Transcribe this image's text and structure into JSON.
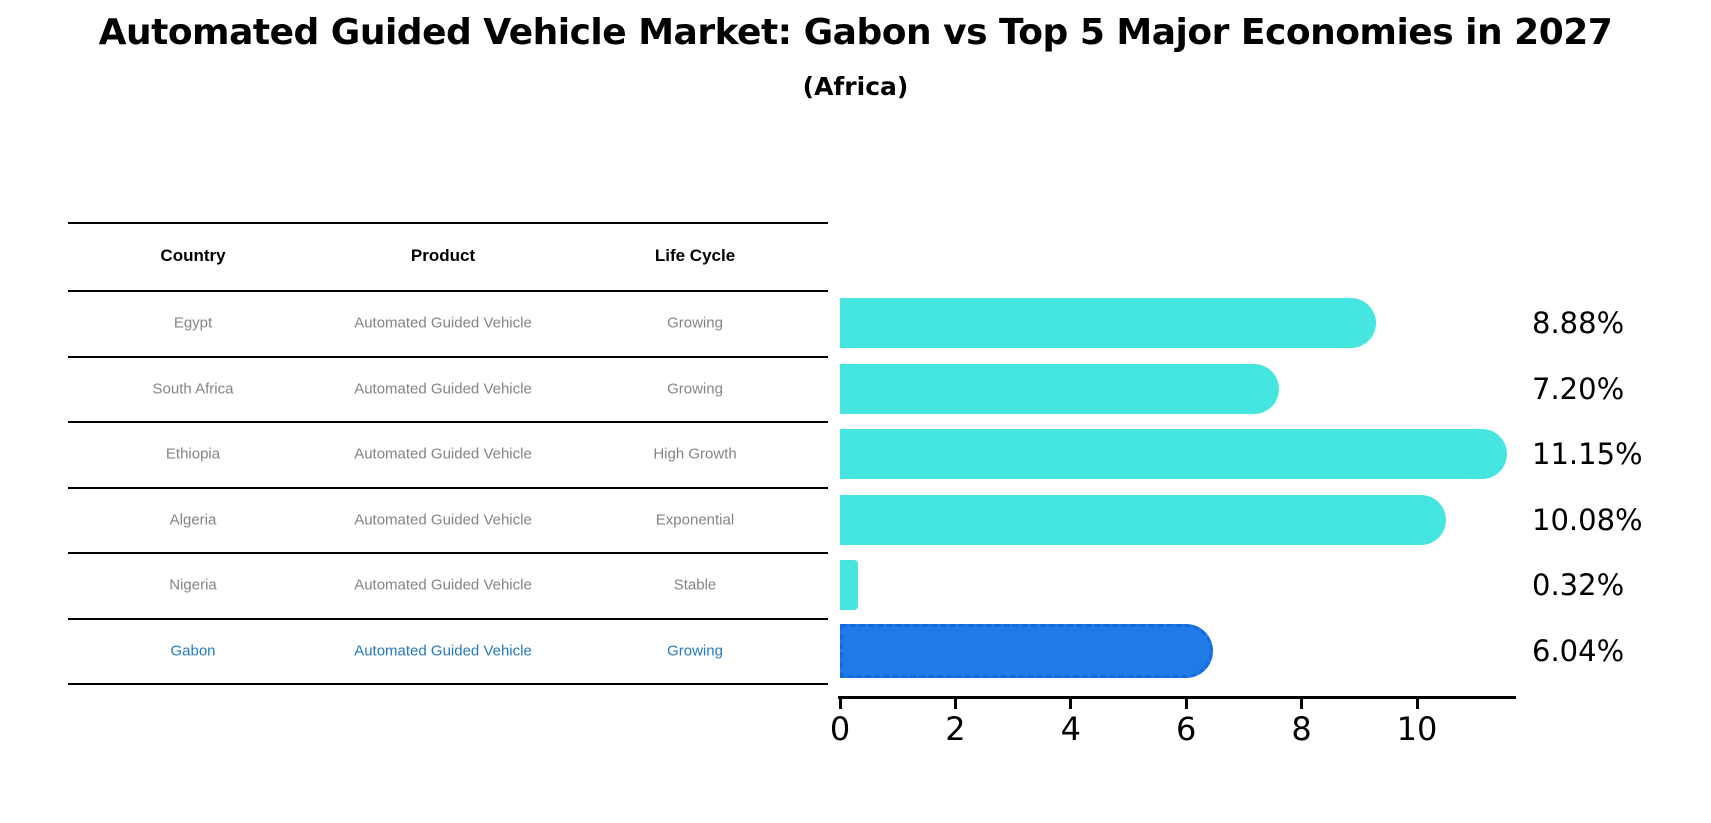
{
  "header": {
    "title": "Automated Guided Vehicle Market: Gabon vs Top 5 Major Economies in 2027",
    "subtitle": "(Africa)"
  },
  "table": {
    "columns": [
      "Country",
      "Product",
      "Life Cycle"
    ],
    "rows": [
      {
        "country": "Egypt",
        "product": "Automated Guided Vehicle",
        "life_cycle": "Growing",
        "highlight": false
      },
      {
        "country": "South Africa",
        "product": "Automated Guided Vehicle",
        "life_cycle": "Growing",
        "highlight": false
      },
      {
        "country": "Ethiopia",
        "product": "Automated Guided Vehicle",
        "life_cycle": "High Growth",
        "highlight": false
      },
      {
        "country": "Algeria",
        "product": "Automated Guided Vehicle",
        "life_cycle": "Exponential",
        "highlight": false
      },
      {
        "country": "Nigeria",
        "product": "Automated Guided Vehicle",
        "life_cycle": "Stable",
        "highlight": false
      },
      {
        "country": "Gabon",
        "product": "Automated Guided Vehicle",
        "life_cycle": "Growing",
        "highlight": true
      }
    ]
  },
  "chart_data": {
    "type": "bar",
    "orientation": "horizontal",
    "title": "Automated Guided Vehicle Market: Gabon vs Top 5 Major Economies in 2027",
    "subtitle": "(Africa)",
    "categories": [
      "Egypt",
      "South Africa",
      "Ethiopia",
      "Algeria",
      "Nigeria",
      "Gabon"
    ],
    "values": [
      8.88,
      7.2,
      11.15,
      10.08,
      0.32,
      6.04
    ],
    "value_labels": [
      "8.88%",
      "7.20%",
      "11.15%",
      "10.08%",
      "0.32%",
      "6.04%"
    ],
    "x_ticks": [
      0,
      2,
      4,
      6,
      8,
      10
    ],
    "xlim": [
      0,
      11.7
    ],
    "grid": false,
    "legend": false,
    "highlight_index": 5
  },
  "colors": {
    "bar": "#45E6DF",
    "highlight_bar": "#207AE8",
    "highlight_bar_edge": "#1668DD",
    "highlight_text": "#2479BE",
    "table_text": "#848484",
    "axis": "#000000"
  }
}
